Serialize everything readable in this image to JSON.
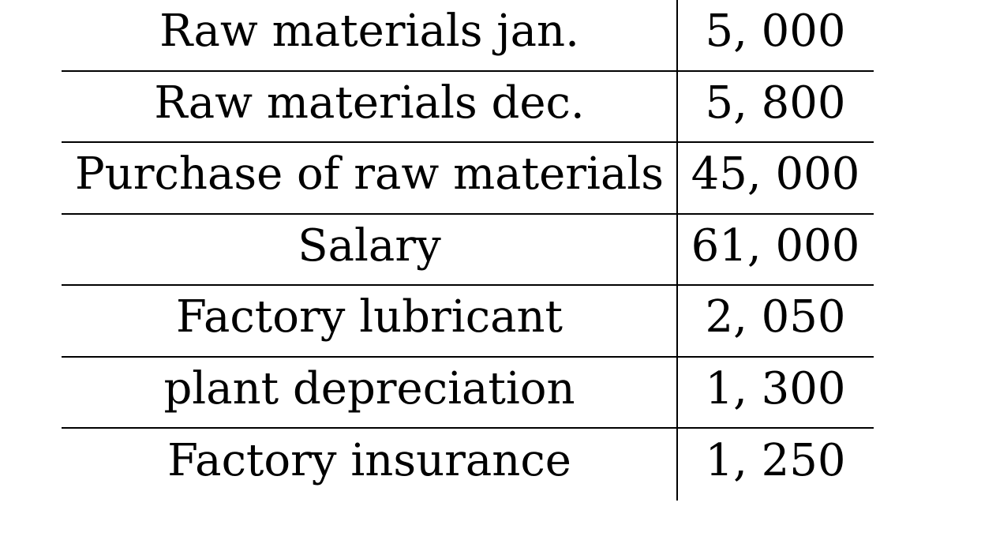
{
  "table": {
    "rows": [
      {
        "label": "Raw materials jan.",
        "value": "5, 000"
      },
      {
        "label": "Raw materials dec.",
        "value": "5, 800"
      },
      {
        "label": "Purchase of raw materials",
        "value": "45, 000"
      },
      {
        "label": "Salary",
        "value": "61, 000"
      },
      {
        "label": "Factory lubricant",
        "value": "2, 050"
      },
      {
        "label": "plant depreciation",
        "value": "1, 300"
      },
      {
        "label": "Factory insurance",
        "value": "1, 250"
      }
    ]
  }
}
